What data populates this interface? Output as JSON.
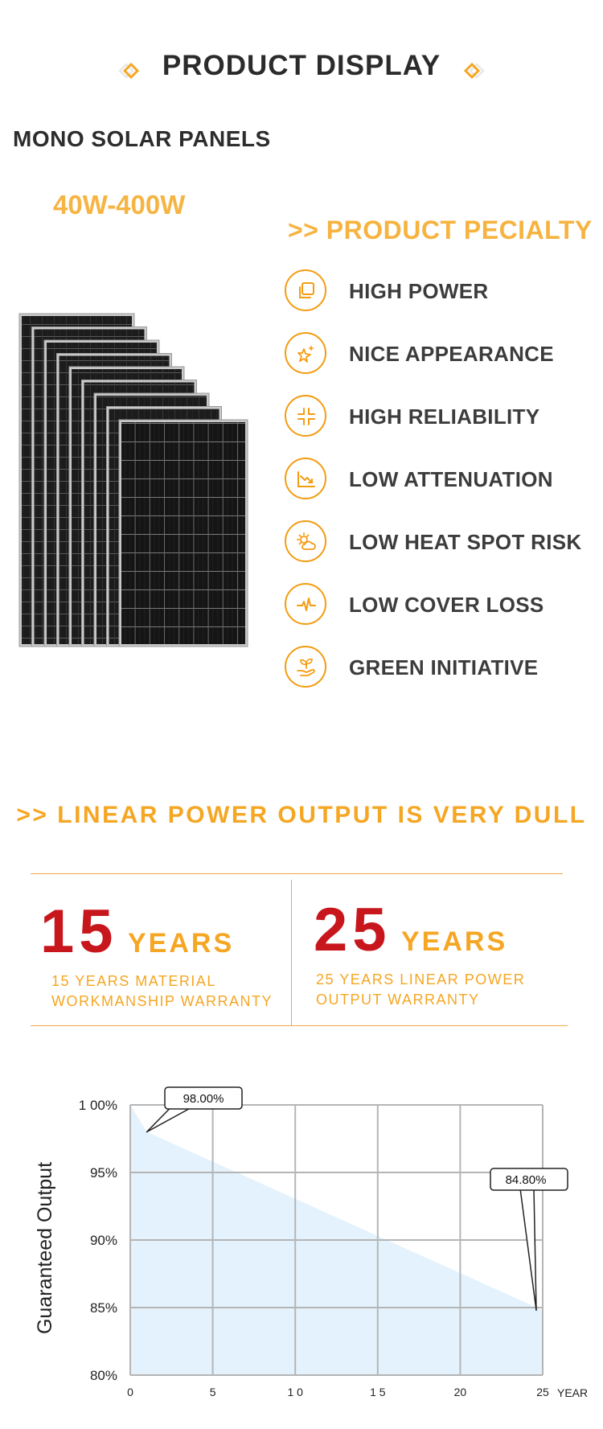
{
  "header": {
    "title": "PRODUCT DISPLAY",
    "accent_color": "#f5a623"
  },
  "product": {
    "name": "MONO SOLAR PANELS",
    "power_range": "40W-400W"
  },
  "specialty": {
    "title": ">> PRODUCT PECIALTY",
    "items": [
      {
        "icon": "square-stack-icon",
        "label": "HIGH POWER"
      },
      {
        "icon": "sparkle-star-icon",
        "label": "NICE APPEARANCE"
      },
      {
        "icon": "arrows-inward-icon",
        "label": "HIGH RELIABILITY"
      },
      {
        "icon": "trend-down-chart-icon",
        "label": "LOW ATTENUATION"
      },
      {
        "icon": "sun-cloud-icon",
        "label": "LOW HEAT SPOT RISK"
      },
      {
        "icon": "pulse-wave-icon",
        "label": "LOW COVER LOSS"
      },
      {
        "icon": "plant-hand-icon",
        "label": "GREEN INITIATIVE"
      }
    ]
  },
  "linear": {
    "title": ">> LINEAR POWER OUTPUT IS VERY DULL"
  },
  "warranty": [
    {
      "number": "15",
      "unit": "YEARS",
      "line1": "15 YEARS MATERIAL",
      "line2": "WORKMANSHIP WARRANTY"
    },
    {
      "number": "25",
      "unit": "YEARS",
      "line1": "25 YEARS LINEAR POWER",
      "line2": "OUTPUT WARRANTY"
    }
  ],
  "chart_data": {
    "type": "area",
    "title": "",
    "ylabel": "Guaranteed Output",
    "xlabel": "YEAR",
    "x_tick_labels": [
      "0",
      "5",
      "1 0",
      "1 5",
      "20",
      "25"
    ],
    "x_ticks": [
      0,
      5,
      10,
      15,
      20,
      25
    ],
    "y_tick_labels": [
      "1 00%",
      "95%",
      "90%",
      "85%",
      "80%"
    ],
    "y_ticks": [
      100,
      95,
      90,
      85,
      80
    ],
    "xlim": [
      0,
      25
    ],
    "ylim": [
      80,
      100
    ],
    "grid": true,
    "series": [
      {
        "x": [
          0,
          1,
          25
        ],
        "y": [
          100,
          98,
          84.8
        ]
      }
    ],
    "annotations": [
      {
        "label": "98.00%",
        "x": 1,
        "y": 98
      },
      {
        "label": "84.80%",
        "x": 25,
        "y": 84.8
      }
    ],
    "fill_color": "#e3f2fc",
    "grid_color": "#b5b5b5"
  }
}
